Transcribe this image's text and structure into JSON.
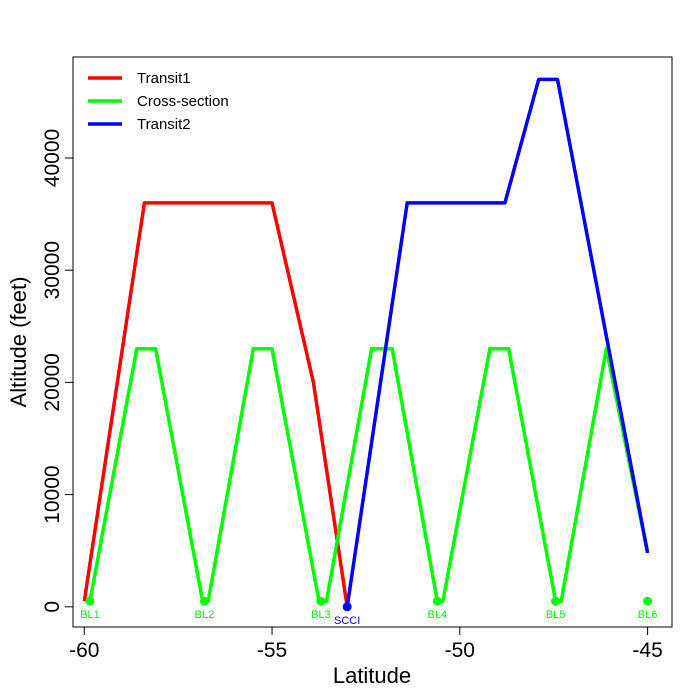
{
  "chart_data": {
    "type": "line",
    "xlabel": "Latitude",
    "ylabel": "Altitude (feet)",
    "xlim": [
      -60.3,
      -44.35
    ],
    "ylim": [
      -1800,
      49000
    ],
    "x_ticks": [
      -60,
      -55,
      -50,
      -45
    ],
    "x_tick_labels": [
      "-60",
      "-55",
      "-50",
      "-45"
    ],
    "y_ticks": [
      0,
      10000,
      20000,
      30000,
      40000
    ],
    "y_tick_labels": [
      "0",
      "10000",
      "20000",
      "30000",
      "40000"
    ],
    "grid": false,
    "legend_position": "top-left",
    "series": [
      {
        "name": "Transit1",
        "color": "#ff0000",
        "points": [
          [
            -60.0,
            500
          ],
          [
            -58.4,
            36000
          ],
          [
            -55.0,
            36000
          ],
          [
            -53.9,
            20000
          ],
          [
            -53.0,
            0
          ]
        ]
      },
      {
        "name": "Cross-section",
        "color": "#00ff00",
        "points": [
          [
            -59.85,
            500
          ],
          [
            -58.6,
            23000
          ],
          [
            -58.1,
            23000
          ],
          [
            -56.85,
            500
          ],
          [
            -56.7,
            500
          ],
          [
            -55.5,
            23000
          ],
          [
            -55.0,
            23000
          ],
          [
            -53.75,
            500
          ],
          [
            -53.55,
            500
          ],
          [
            -52.35,
            23000
          ],
          [
            -51.8,
            23000
          ],
          [
            -50.6,
            500
          ],
          [
            -50.45,
            500
          ],
          [
            -49.2,
            23000
          ],
          [
            -48.7,
            23000
          ],
          [
            -47.45,
            500
          ],
          [
            -47.3,
            500
          ],
          [
            -46.1,
            23000
          ],
          [
            -45.0,
            4800
          ]
        ]
      },
      {
        "name": "Transit2",
        "color": "#0000ff",
        "points": [
          [
            -53.0,
            0
          ],
          [
            -51.4,
            36000
          ],
          [
            -48.8,
            36000
          ],
          [
            -47.9,
            47000
          ],
          [
            -47.4,
            47000
          ],
          [
            -45.0,
            4800
          ]
        ]
      }
    ],
    "markers": [
      {
        "label": "BL1",
        "x": -59.85,
        "y": 500,
        "color": "#00ff00"
      },
      {
        "label": "BL2",
        "x": -56.8,
        "y": 500,
        "color": "#00ff00"
      },
      {
        "label": "BL3",
        "x": -53.7,
        "y": 500,
        "color": "#00ff00"
      },
      {
        "label": "SCCI",
        "x": -53.0,
        "y": 0,
        "color": "#0000ff"
      },
      {
        "label": "BL4",
        "x": -50.6,
        "y": 500,
        "color": "#00ff00"
      },
      {
        "label": "BL5",
        "x": -47.45,
        "y": 500,
        "color": "#00ff00"
      },
      {
        "label": "BL6",
        "x": -45.0,
        "y": 500,
        "color": "#00ff00"
      }
    ]
  }
}
